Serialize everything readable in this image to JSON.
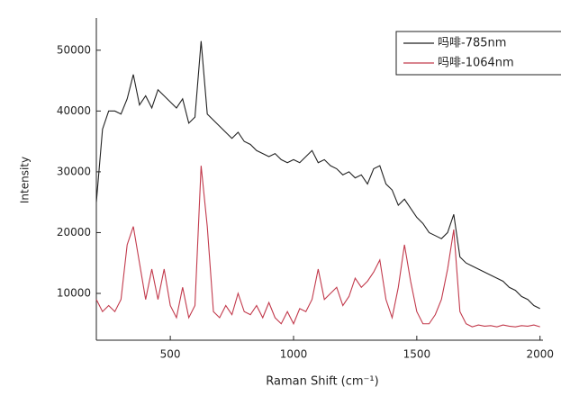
{
  "chart_data": {
    "type": "line",
    "x_label": "Raman Shift (cm⁻¹)",
    "y_label": "Intensity",
    "x": [
      200,
      225,
      250,
      275,
      300,
      325,
      350,
      375,
      400,
      425,
      450,
      475,
      500,
      525,
      550,
      575,
      600,
      625,
      650,
      675,
      700,
      725,
      750,
      775,
      800,
      825,
      850,
      875,
      900,
      925,
      950,
      975,
      1000,
      1025,
      1050,
      1075,
      1100,
      1125,
      1150,
      1175,
      1200,
      1225,
      1250,
      1275,
      1300,
      1325,
      1350,
      1375,
      1400,
      1425,
      1450,
      1475,
      1500,
      1525,
      1550,
      1575,
      1600,
      1625,
      1650,
      1675,
      1700,
      1725,
      1750,
      1775,
      1800,
      1825,
      1850,
      1875,
      1900,
      1925,
      1950,
      1975,
      2000
    ],
    "series": [
      {
        "name": "吗啡-785nm",
        "color": "#222222",
        "values": [
          25000,
          37000,
          40000,
          40000,
          39500,
          42000,
          46000,
          41000,
          42500,
          40500,
          43500,
          42500,
          41500,
          40500,
          42000,
          38000,
          39000,
          51500,
          39500,
          38500,
          37500,
          36500,
          35500,
          36500,
          35000,
          34500,
          33500,
          33000,
          32500,
          33000,
          32000,
          31500,
          32000,
          31500,
          32500,
          33500,
          31500,
          32000,
          31000,
          30500,
          29500,
          30000,
          29000,
          29500,
          28000,
          30500,
          31000,
          28000,
          27000,
          24500,
          25500,
          24000,
          22500,
          21500,
          20000,
          19500,
          19000,
          20000,
          23000,
          16000,
          15000,
          14500,
          14000,
          13500,
          13000,
          12500,
          12000,
          11000,
          10500,
          9500,
          9000,
          8000,
          7500
        ]
      },
      {
        "name": "吗啡-1064nm",
        "color": "#c23a4c",
        "values": [
          9000,
          7000,
          8000,
          7000,
          9000,
          18000,
          21000,
          15000,
          9000,
          14000,
          9000,
          14000,
          8000,
          6000,
          11000,
          6000,
          8000,
          31000,
          21000,
          7000,
          6000,
          8000,
          6500,
          10000,
          7000,
          6500,
          8000,
          6000,
          8500,
          6000,
          5000,
          7000,
          5000,
          7500,
          7000,
          9000,
          14000,
          9000,
          10000,
          11000,
          8000,
          9500,
          12500,
          11000,
          12000,
          13500,
          15500,
          9000,
          6000,
          11000,
          18000,
          12000,
          7000,
          5000,
          5000,
          6500,
          9000,
          14000,
          20500,
          7000,
          5000,
          4500,
          4800,
          4600,
          4700,
          4500,
          4800,
          4600,
          4500,
          4700,
          4600,
          4800,
          4500
        ]
      }
    ],
    "xlim": [
      200,
      2012
    ],
    "ylim": [
      2300,
      55300
    ],
    "xticks": [
      500,
      1000,
      1500,
      2000
    ],
    "yticks": [
      10000,
      20000,
      30000,
      40000,
      50000
    ],
    "legend": "top-right"
  }
}
